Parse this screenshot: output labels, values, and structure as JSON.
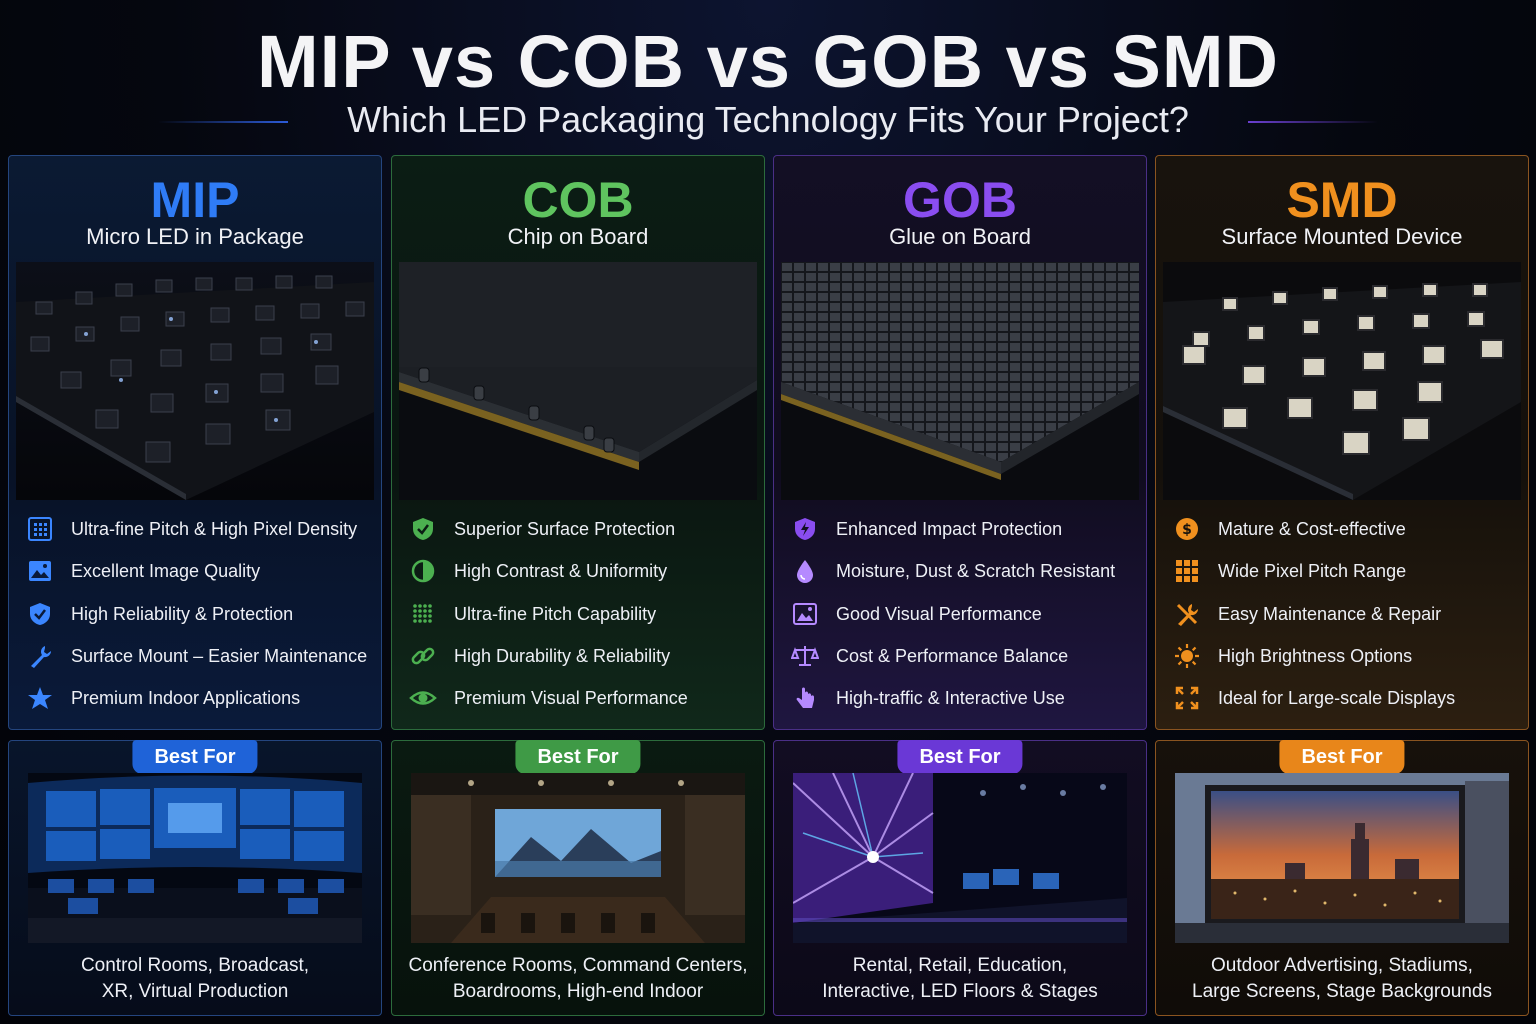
{
  "header": {
    "title": "MIP vs COB vs GOB vs SMD",
    "subtitle": "Which LED Packaging Technology Fits Your Project?"
  },
  "best_for_label": "Best For",
  "columns": [
    {
      "name": "MIP",
      "full_name": "Micro LED in Package",
      "accent": "#2f7cf6",
      "features": [
        {
          "icon": "pixel-grid-icon",
          "label": "Ultra-fine Pitch & High Pixel Density"
        },
        {
          "icon": "image-icon",
          "label": "Excellent Image Quality"
        },
        {
          "icon": "shield-check-icon",
          "label": "High Reliability & Protection"
        },
        {
          "icon": "wrench-icon",
          "label": "Surface Mount – Easier Maintenance"
        },
        {
          "icon": "star-icon",
          "label": "Premium Indoor Applications"
        }
      ],
      "use_cases": [
        "Control Rooms, Broadcast,",
        "XR, Virtual Production"
      ]
    },
    {
      "name": "COB",
      "full_name": "Chip on Board",
      "accent": "#5fc45f",
      "features": [
        {
          "icon": "shield-check-icon",
          "label": "Superior Surface Protection"
        },
        {
          "icon": "contrast-icon",
          "label": "High Contrast & Uniformity"
        },
        {
          "icon": "dot-grid-icon",
          "label": "Ultra-fine Pitch Capability"
        },
        {
          "icon": "link-icon",
          "label": "High Durability & Reliability"
        },
        {
          "icon": "eye-icon",
          "label": "Premium Visual Performance"
        }
      ],
      "use_cases": [
        "Conference Rooms, Command Centers,",
        "Boardrooms, High-end Indoor"
      ]
    },
    {
      "name": "GOB",
      "full_name": "Glue on Board",
      "accent": "#8a4df0",
      "features": [
        {
          "icon": "shield-bolt-icon",
          "label": "Enhanced Impact Protection"
        },
        {
          "icon": "droplet-icon",
          "label": "Moisture, Dust & Scratch Resistant"
        },
        {
          "icon": "image-icon",
          "label": "Good Visual Performance"
        },
        {
          "icon": "balance-scale-icon",
          "label": "Cost & Performance Balance"
        },
        {
          "icon": "touch-hand-icon",
          "label": "High-traffic & Interactive Use"
        }
      ],
      "use_cases": [
        "Rental, Retail, Education,",
        "Interactive, LED Floors & Stages"
      ]
    },
    {
      "name": "SMD",
      "full_name": "Surface Mounted Device",
      "accent": "#f0901e",
      "features": [
        {
          "icon": "dollar-coin-icon",
          "label": "Mature & Cost-effective"
        },
        {
          "icon": "grid-icon",
          "label": "Wide Pixel Pitch Range"
        },
        {
          "icon": "tools-icon",
          "label": "Easy Maintenance & Repair"
        },
        {
          "icon": "sun-icon",
          "label": "High Brightness Options"
        },
        {
          "icon": "expand-icon",
          "label": "Ideal for Large-scale Displays"
        }
      ],
      "use_cases": [
        "Outdoor Advertising, Stadiums,",
        "Large Screens, Stage Backgrounds"
      ]
    }
  ]
}
